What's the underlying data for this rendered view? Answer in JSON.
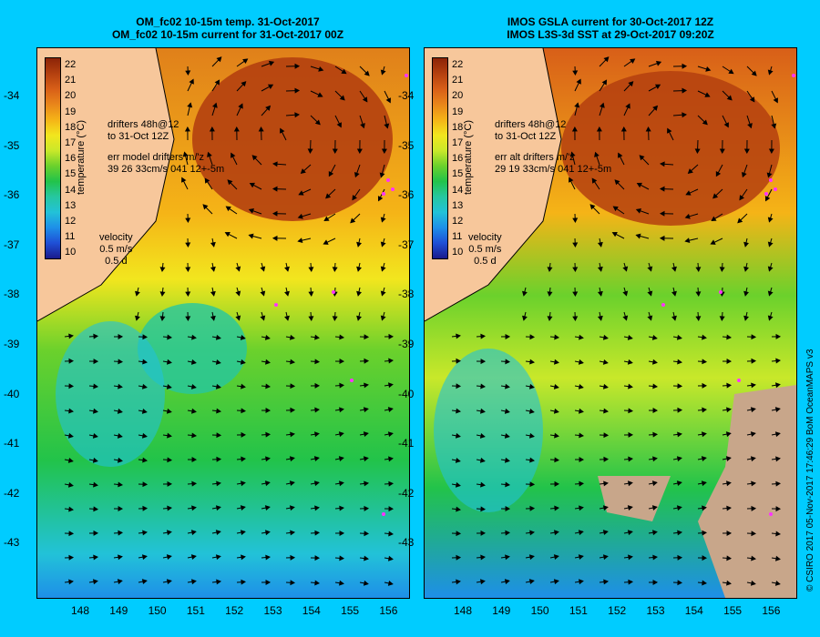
{
  "colors": {
    "background": "#00ccff",
    "land": "#f7c79b",
    "land_mask": "#c8a68a",
    "drifter": "#ff33ff",
    "colorbar": [
      "#1a1a8c",
      "#1f4fd6",
      "#1e8fe8",
      "#22c2d8",
      "#26c7a0",
      "#22c34a",
      "#6bd12c",
      "#c9e82a",
      "#f2e61e",
      "#f5b417",
      "#e9861a",
      "#d85f18",
      "#b4400f",
      "#8c2408"
    ]
  },
  "panels": [
    {
      "id": "left",
      "title_line1": "OM_fc02 10-15m temp. 31-Oct-2017",
      "title_line2": "OM_fc02 10-15m current for 31-Oct-2017 00Z",
      "drifter_text_1": "drifters 48h@12",
      "drifter_text_2": "to 31-Oct 12Z",
      "err_text_1": "err model drifters m/'z",
      "err_text_2": "39 26 33cm/s 041 12+-5m",
      "velocity_label": "velocity",
      "velocity_scale_1": "0.5 m/s",
      "velocity_scale_2": "0.5 d"
    },
    {
      "id": "right",
      "title_line1": "IMOS GSLA current for 30-Oct-2017 12Z",
      "title_line2": "IMOS L3S-3d SST at 29-Oct-2017 09:20Z",
      "drifter_text_1": "drifters 48h@12",
      "drifter_text_2": "to 31-Oct 12Z",
      "err_text_1": "err alt drifters m/'z",
      "err_text_2": "29 19 33cm/s 041 12+-5m",
      "velocity_label": "velocity",
      "velocity_scale_1": "0.5 m/s",
      "velocity_scale_2": "0.5 d"
    }
  ],
  "colorbar": {
    "ticks": [
      "22",
      "21",
      "20",
      "19",
      "18",
      "17",
      "16",
      "15",
      "14",
      "13",
      "12",
      "11",
      "10"
    ],
    "label": "temperature (°C)"
  },
  "lat_labels": [
    "-34",
    "-35",
    "-36",
    "-37",
    "-38",
    "-39",
    "-40",
    "-41",
    "-42",
    "-43"
  ],
  "lon_labels": [
    "148",
    "149",
    "150",
    "151",
    "152",
    "153",
    "154",
    "155",
    "156"
  ],
  "credit": "© CSIRO 2017   05-Nov-2017 17:46:29 BoM OceanMAPS v3"
}
